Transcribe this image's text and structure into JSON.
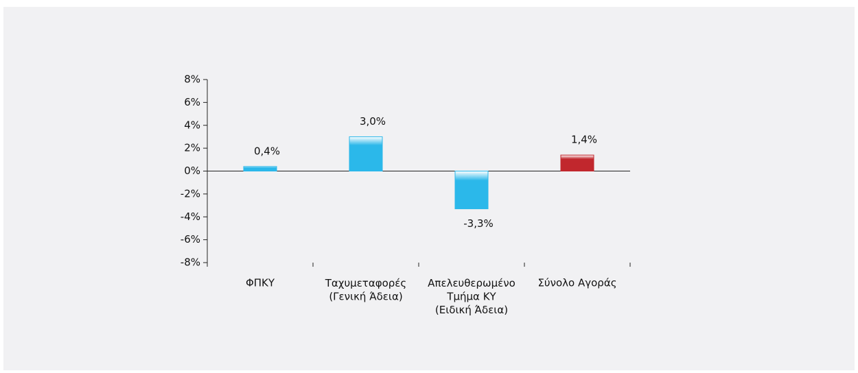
{
  "chart_data": {
    "type": "bar",
    "categories": [
      "ΦΠΚΥ",
      "Ταχυμεταφορές\n(Γενική Άδεια)",
      "Απελευθερωμένο\nΤμήμα ΚΥ\n(Ειδική Άδεια)",
      "Σύνολο Αγοράς"
    ],
    "values": [
      0.4,
      3.0,
      -3.3,
      1.4
    ],
    "value_labels": [
      "0,4%",
      "3,0%",
      "-3,3%",
      "1,4%"
    ],
    "colors": [
      "#2bb8ea",
      "#2bb8ea",
      "#2bb8ea",
      "#c1272d"
    ],
    "ylim": [
      -8,
      8
    ],
    "yticks": [
      {
        "value": -8,
        "label": "-8%"
      },
      {
        "value": -6,
        "label": "-6%"
      },
      {
        "value": -4,
        "label": "-4%"
      },
      {
        "value": -2,
        "label": "-2%"
      },
      {
        "value": 0,
        "label": "0%"
      },
      {
        "value": 2,
        "label": "2%"
      },
      {
        "value": 4,
        "label": "4%"
      },
      {
        "value": 6,
        "label": "6%"
      },
      {
        "value": 8,
        "label": "8%"
      }
    ],
    "grid": false
  }
}
